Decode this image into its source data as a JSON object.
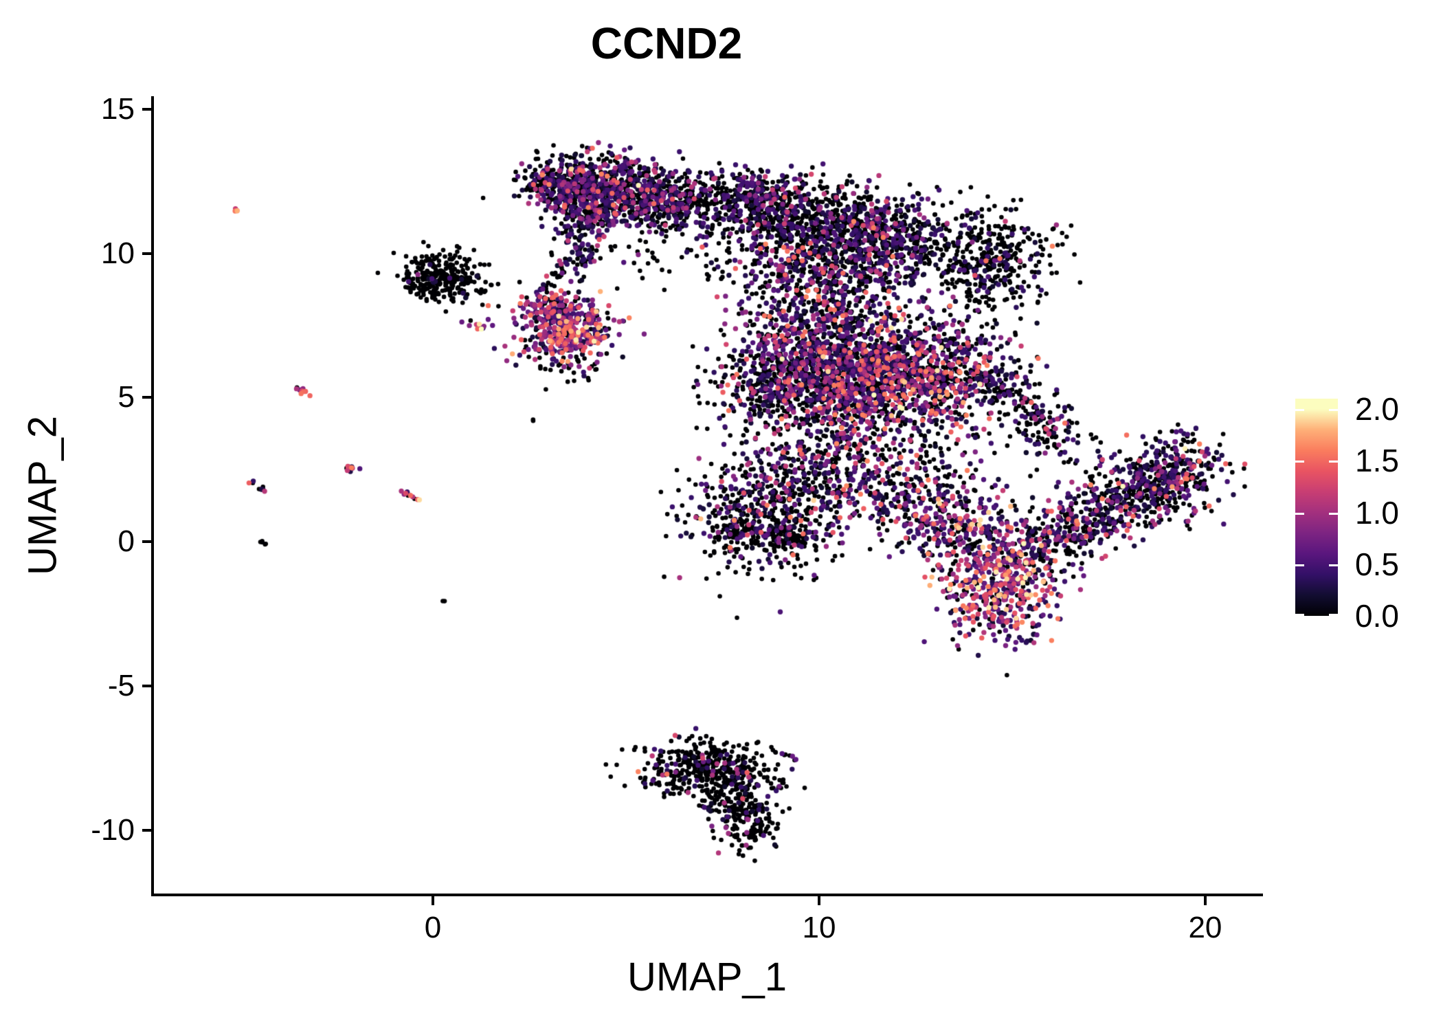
{
  "title": "CCND2",
  "colorbar": {
    "tick_labels": [
      "2.0",
      "1.5",
      "1.0",
      "0.5",
      "0.0"
    ],
    "tick_values": [
      2.0,
      1.5,
      1.0,
      0.5,
      0.0
    ],
    "bar_value_max": 2.1,
    "tick_color": "#ffffff"
  },
  "chart_data": {
    "type": "scatter",
    "title": "CCND2",
    "xlabel": "UMAP_1",
    "ylabel": "UMAP_2",
    "xlim": [
      -7.26,
      21.46
    ],
    "ylim": [
      -12.25,
      15.45
    ],
    "x_ticks": [
      0,
      10,
      20
    ],
    "y_ticks": [
      15,
      10,
      5,
      0,
      -5,
      -10
    ],
    "grid": false,
    "legend_position": "right",
    "legend_type": "colorbar",
    "colorscale_name": "magma",
    "colorscale_domain": [
      0.0,
      2.0
    ],
    "colorscale_stops": [
      [
        0.0,
        "#000004"
      ],
      [
        0.1,
        "#120d31"
      ],
      [
        0.2,
        "#331067"
      ],
      [
        0.3,
        "#5a167e"
      ],
      [
        0.4,
        "#7d2482"
      ],
      [
        0.5,
        "#a3307e"
      ],
      [
        0.6,
        "#c83e73"
      ],
      [
        0.7,
        "#e95462"
      ],
      [
        0.8,
        "#fa7d5e"
      ],
      [
        0.9,
        "#feb078"
      ],
      [
        1.0,
        "#fcfdbf"
      ]
    ],
    "expression_bands": [
      [
        0,
        0
      ],
      [
        0.15,
        0.55
      ],
      [
        0.6,
        1.2
      ],
      [
        1.25,
        1.65
      ],
      [
        1.7,
        2.0
      ]
    ],
    "point_count_total": 10702,
    "clusters": [
      {
        "name": "topleft-a1",
        "shape": "blob",
        "cx": 3.3,
        "cy": 12.45,
        "sx": 0.55,
        "sy": 0.45,
        "n": 300,
        "expr": [
          0.52,
          0.34,
          0.1,
          0.035,
          0.005
        ]
      },
      {
        "name": "topleft-a2",
        "shape": "blob",
        "cx": 4.5,
        "cy": 12.35,
        "sx": 0.75,
        "sy": 0.55,
        "n": 430,
        "expr": [
          0.52,
          0.34,
          0.1,
          0.035,
          0.005
        ]
      },
      {
        "name": "topleft-a3",
        "shape": "blob",
        "cx": 5.9,
        "cy": 11.9,
        "sx": 0.75,
        "sy": 0.5,
        "n": 380,
        "expr": [
          0.58,
          0.32,
          0.08,
          0.02,
          0
        ]
      },
      {
        "name": "topleft-a4",
        "shape": "blob",
        "cx": 4.1,
        "cy": 11.35,
        "sx": 0.5,
        "sy": 0.35,
        "n": 140,
        "expr": [
          0.5,
          0.36,
          0.11,
          0.03,
          0
        ]
      },
      {
        "name": "topleft-fringe",
        "shape": "blob",
        "cx": 7.3,
        "cy": 11.5,
        "sx": 0.8,
        "sy": 0.7,
        "n": 110,
        "expr": [
          0.75,
          0.2,
          0.04,
          0.01,
          0
        ]
      },
      {
        "name": "topleft-neck",
        "shape": "blob",
        "cx": 3.9,
        "cy": 10.2,
        "sx": 0.35,
        "sy": 0.5,
        "n": 85,
        "expr": [
          0.55,
          0.35,
          0.08,
          0.02,
          0
        ]
      },
      {
        "name": "chain-topleft-to-mid",
        "shape": "line",
        "x1": 3.6,
        "y1": 9.6,
        "x2": 2.8,
        "y2": 8.8,
        "jitter": 0.18,
        "n": 24,
        "expr": [
          0.8,
          0.15,
          0.05,
          0,
          0
        ]
      },
      {
        "name": "left-black-blob",
        "shape": "blob",
        "cx": 0.25,
        "cy": 9.15,
        "sx": 0.55,
        "sy": 0.42,
        "n": 300,
        "expr": [
          0.96,
          0.03,
          0.01,
          0,
          0
        ]
      },
      {
        "name": "left-blob-bright-streak",
        "shape": "line",
        "x1": 0.78,
        "y1": 7.6,
        "x2": 1.55,
        "y2": 7.3,
        "jitter": 0.07,
        "n": 13,
        "expr": [
          0.1,
          0.2,
          0.3,
          0.35,
          0.05
        ]
      },
      {
        "name": "mid-bright-cluster",
        "shape": "blob",
        "cx": 3.45,
        "cy": 7.4,
        "sx": 0.62,
        "sy": 0.55,
        "n": 430,
        "expr": [
          0.17,
          0.28,
          0.33,
          0.17,
          0.05
        ]
      },
      {
        "name": "mid-bright-topedge",
        "shape": "blob",
        "cx": 3.0,
        "cy": 8.3,
        "sx": 0.45,
        "sy": 0.2,
        "n": 50,
        "expr": [
          0.45,
          0.3,
          0.17,
          0.08,
          0
        ]
      },
      {
        "name": "mid-bright-below",
        "shape": "blob",
        "cx": 3.4,
        "cy": 6.15,
        "sx": 0.6,
        "sy": 0.3,
        "n": 32,
        "expr": [
          0.75,
          0.15,
          0.1,
          0,
          0
        ]
      },
      {
        "name": "isolated-dot-below-mid",
        "shape": "line",
        "x1": 2.6,
        "y1": 4.2,
        "x2": 2.6,
        "y2": 4.2,
        "jitter": 0.02,
        "n": 2,
        "expr": [
          1,
          0,
          0,
          0,
          0
        ]
      },
      {
        "name": "right-top-band",
        "shape": "line",
        "x1": 8.3,
        "y1": 11.6,
        "x2": 12.8,
        "y2": 10.4,
        "jitter": 0.75,
        "n": 1050,
        "expr": [
          0.6,
          0.3,
          0.08,
          0.02,
          0
        ]
      },
      {
        "name": "right-top-core",
        "shape": "blob",
        "cx": 10.2,
        "cy": 9.6,
        "sx": 1.2,
        "sy": 0.7,
        "n": 480,
        "expr": [
          0.55,
          0.32,
          0.1,
          0.03,
          0
        ]
      },
      {
        "name": "right-top-tip",
        "shape": "blob",
        "cx": 8.2,
        "cy": 12.1,
        "sx": 0.5,
        "sy": 0.35,
        "n": 120,
        "expr": [
          0.6,
          0.3,
          0.08,
          0.02,
          0
        ]
      },
      {
        "name": "bridge-top",
        "shape": "line",
        "x1": 7.0,
        "y1": 12.3,
        "x2": 8.5,
        "y2": 11.1,
        "jitter": 0.3,
        "n": 28,
        "expr": [
          0.9,
          0.1,
          0,
          0,
          0
        ]
      },
      {
        "name": "right-ear",
        "shape": "blob",
        "cx": 14.5,
        "cy": 9.7,
        "sx": 0.75,
        "sy": 0.95,
        "n": 380,
        "expr": [
          0.83,
          0.13,
          0.03,
          0.01,
          0
        ]
      },
      {
        "name": "right-core-band",
        "shape": "line",
        "x1": 9.3,
        "y1": 7.6,
        "x2": 13.8,
        "y2": 5.3,
        "jitter": 1.0,
        "n": 1350,
        "expr": [
          0.45,
          0.31,
          0.16,
          0.07,
          0.01
        ]
      },
      {
        "name": "right-core-blob",
        "shape": "blob",
        "cx": 11.2,
        "cy": 5.2,
        "sx": 1.3,
        "sy": 0.9,
        "n": 750,
        "expr": [
          0.45,
          0.31,
          0.16,
          0.07,
          0.01
        ]
      },
      {
        "name": "right-core-left",
        "shape": "blob",
        "cx": 8.9,
        "cy": 5.6,
        "sx": 0.8,
        "sy": 0.95,
        "n": 480,
        "expr": [
          0.55,
          0.3,
          0.11,
          0.04,
          0
        ]
      },
      {
        "name": "right-edge-arm",
        "shape": "line",
        "x1": 14.4,
        "y1": 6.2,
        "x2": 16.3,
        "y2": 3.1,
        "jitter": 0.45,
        "n": 210,
        "expr": [
          0.6,
          0.28,
          0.09,
          0.03,
          0
        ]
      },
      {
        "name": "lower-left-lobe",
        "shape": "blob",
        "cx": 8.7,
        "cy": 0.9,
        "sx": 0.95,
        "sy": 1.05,
        "n": 560,
        "expr": [
          0.63,
          0.24,
          0.09,
          0.035,
          0.005
        ]
      },
      {
        "name": "lower-left-arm",
        "shape": "line",
        "x1": 7.35,
        "y1": 0.35,
        "x2": 9.8,
        "y2": 0.1,
        "jitter": 0.18,
        "n": 110,
        "expr": [
          0.85,
          0.12,
          0.03,
          0,
          0
        ]
      },
      {
        "name": "mid-connect",
        "shape": "blob",
        "cx": 10.3,
        "cy": 2.6,
        "sx": 0.9,
        "sy": 0.85,
        "n": 240,
        "expr": [
          0.55,
          0.3,
          0.1,
          0.05,
          0
        ]
      },
      {
        "name": "between-cores",
        "shape": "blob",
        "cx": 12.3,
        "cy": 1.9,
        "sx": 1.0,
        "sy": 0.9,
        "n": 280,
        "expr": [
          0.5,
          0.3,
          0.14,
          0.05,
          0.01
        ]
      },
      {
        "name": "bright-bottom-lobe",
        "shape": "blob",
        "cx": 14.7,
        "cy": -1.5,
        "sx": 0.72,
        "sy": 0.95,
        "n": 520,
        "expr": [
          0.2,
          0.27,
          0.3,
          0.17,
          0.06
        ]
      },
      {
        "name": "bright-lobe-neck",
        "shape": "blob",
        "cx": 13.7,
        "cy": 0.5,
        "sx": 0.8,
        "sy": 0.7,
        "n": 250,
        "expr": [
          0.35,
          0.3,
          0.22,
          0.1,
          0.03
        ]
      },
      {
        "name": "right-wing",
        "shape": "line",
        "x1": 15.6,
        "y1": -0.35,
        "x2": 19.9,
        "y2": 2.9,
        "jitter": 0.5,
        "n": 620,
        "expr": [
          0.55,
          0.3,
          0.11,
          0.035,
          0.005
        ]
      },
      {
        "name": "right-wing-east",
        "shape": "blob",
        "cx": 18.6,
        "cy": 2.1,
        "sx": 0.95,
        "sy": 0.75,
        "n": 240,
        "expr": [
          0.52,
          0.33,
          0.11,
          0.035,
          0.005
        ]
      },
      {
        "name": "right-wing-fringe",
        "shape": "blob",
        "cx": 19.2,
        "cy": 3.7,
        "sx": 0.4,
        "sy": 0.3,
        "n": 12,
        "expr": [
          0.6,
          0.35,
          0.05,
          0,
          0
        ]
      },
      {
        "name": "bottom-cluster-main",
        "shape": "blob",
        "cx": 7.0,
        "cy": -7.9,
        "sx": 0.85,
        "sy": 0.5,
        "n": 400,
        "expr": [
          0.9,
          0.07,
          0.02,
          0.01,
          0
        ]
      },
      {
        "name": "bottom-cluster-lower",
        "shape": "blob",
        "cx": 7.9,
        "cy": -9.1,
        "sx": 0.5,
        "sy": 0.6,
        "n": 190,
        "expr": [
          0.88,
          0.08,
          0.03,
          0.01,
          0
        ]
      },
      {
        "name": "bottom-cluster-tip",
        "shape": "blob",
        "cx": 8.3,
        "cy": -10.0,
        "sx": 0.3,
        "sy": 0.35,
        "n": 55,
        "expr": [
          0.92,
          0.06,
          0.02,
          0,
          0
        ]
      },
      {
        "name": "bottom-cluster-tail",
        "shape": "line",
        "x1": 8.8,
        "y1": -7.2,
        "x2": 9.4,
        "y2": -7.6,
        "jitter": 0.08,
        "n": 10,
        "expr": [
          0.7,
          0.2,
          0.1,
          0,
          0
        ]
      },
      {
        "name": "streak-salmon-top",
        "shape": "line",
        "x1": -5.15,
        "y1": 11.55,
        "x2": -4.95,
        "y2": 11.35,
        "jitter": 0.03,
        "n": 4,
        "expr": [
          0.1,
          0.1,
          0.2,
          0.5,
          0.1
        ]
      },
      {
        "name": "streak-mid-left",
        "shape": "line",
        "x1": -3.55,
        "y1": 5.35,
        "x2": -3.1,
        "y2": 4.95,
        "jitter": 0.04,
        "n": 9,
        "expr": [
          0.15,
          0.15,
          0.2,
          0.45,
          0.05
        ]
      },
      {
        "name": "streak-purple",
        "shape": "line",
        "x1": -4.75,
        "y1": 2.1,
        "x2": -4.35,
        "y2": 1.75,
        "jitter": 0.04,
        "n": 9,
        "expr": [
          0.3,
          0.55,
          0.1,
          0.05,
          0
        ]
      },
      {
        "name": "streak-pink-blob",
        "shape": "blob",
        "cx": -2.15,
        "cy": 2.6,
        "sx": 0.13,
        "sy": 0.1,
        "n": 9,
        "expr": [
          0.15,
          0.25,
          0.3,
          0.3,
          0
        ]
      },
      {
        "name": "streak-long",
        "shape": "line",
        "x1": -0.95,
        "y1": 1.85,
        "x2": -0.35,
        "y2": 1.45,
        "jitter": 0.05,
        "n": 11,
        "expr": [
          0.25,
          0.2,
          0.2,
          0.25,
          0.1
        ]
      },
      {
        "name": "streak-black",
        "shape": "line",
        "x1": -4.5,
        "y1": 0.05,
        "x2": -4.25,
        "y2": -0.15,
        "jitter": 0.03,
        "n": 5,
        "expr": [
          1,
          0,
          0,
          0,
          0
        ]
      },
      {
        "name": "isolated-black-dot",
        "shape": "line",
        "x1": 0.25,
        "y1": -2.05,
        "x2": 0.35,
        "y2": -2.08,
        "jitter": 0.02,
        "n": 2,
        "expr": [
          1,
          0,
          0,
          0,
          0
        ]
      },
      {
        "name": "sparse-below-topleft",
        "shape": "blob",
        "cx": 5.6,
        "cy": 9.6,
        "sx": 0.6,
        "sy": 0.45,
        "n": 22,
        "expr": [
          0.85,
          0.1,
          0.05,
          0,
          0
        ]
      }
    ]
  }
}
